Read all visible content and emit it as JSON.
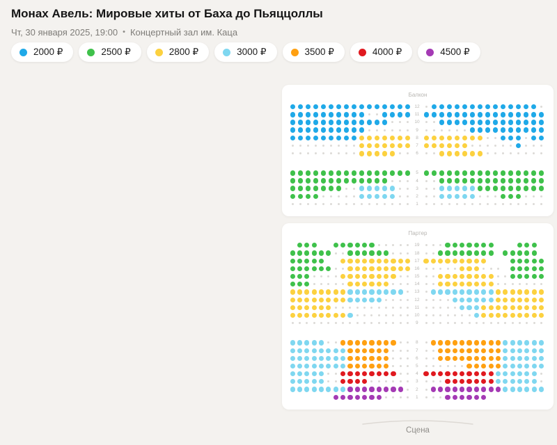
{
  "header": {
    "title": "Монах Авель: Мировые хиты от Баха до Пьяццоллы",
    "date": "Чт, 30 января 2025, 19:00",
    "separator": "•",
    "venue": "Концертный зал им. Каца"
  },
  "legend": [
    {
      "label": "2000 ₽",
      "color": "#1fa9e8"
    },
    {
      "label": "2500 ₽",
      "color": "#3fc14b"
    },
    {
      "label": "2800 ₽",
      "color": "#fcd13f"
    },
    {
      "label": "3000 ₽",
      "color": "#7fd7f0"
    },
    {
      "label": "3500 ₽",
      "color": "#ffa011"
    },
    {
      "label": "4000 ₽",
      "color": "#e0191f"
    },
    {
      "label": "4500 ₽",
      "color": "#a43ab4"
    }
  ],
  "seat_colors": {
    "B": "#1fa9e8",
    "G": "#3fc14b",
    "Y": "#fcd13f",
    "C": "#7fd7f0",
    "O": "#ffa011",
    "R": "#e0191f",
    "P": "#a43ab4"
  },
  "seat_prices": {
    "B": "2000 ₽",
    "G": "2500 ₽",
    "Y": "2800 ₽",
    "C": "3000 ₽",
    "O": "3500 ₽",
    "R": "4000 ₽",
    "P": "4500 ₽"
  },
  "sections": [
    {
      "name": "Балкон",
      "blocks": [
        {
          "rows": [
            {
              "num": "12",
              "left": "BBBBBBBBBBBBBBBB",
              "right": ".BBBBBBBBBBBBBB."
            },
            {
              "num": "11",
              "left": "BBBBBBBBBB..BBBB",
              "right": "BBBBBBBBBBBBBBBB"
            },
            {
              "num": "10",
              "left": "BBBBBBBBBBBBB...",
              "right": "..BBBBBBBBBBBBBB"
            },
            {
              "num": "9",
              "left": "BBBBBBBBBB......",
              "right": "......BBBBBBBBBB"
            },
            {
              "num": "8",
              "left": "BBBBBBBBBYYYYYYY",
              "right": "YYYYYYYY..BBB.BB"
            },
            {
              "num": "7",
              "left": ".........YYYYYYY",
              "right": "YYYYYY......B..."
            },
            {
              "num": "6",
              "left": ".........YYYYY..",
              "right": "..YYYYYY........"
            }
          ]
        },
        {
          "rows": [
            {
              "num": "5",
              "left": "GGGGGGGGGGGGGGGG",
              "right": "GGGGGGGGGGGGGGGG"
            },
            {
              "num": "4",
              "left": "GGGGGGGGGGGGG...",
              "right": "..GGGGGGGGGGGGGG"
            },
            {
              "num": "3",
              "left": "GGGGGGG..CCCCC..",
              "right": "..CCCCCGGGGGGGGG"
            },
            {
              "num": "2",
              "left": "GGGG.....CCCCC..",
              "right": "..CCCCC...GGG..."
            },
            {
              "num": "1",
              "left": "................",
              "right": "................"
            }
          ]
        }
      ]
    },
    {
      "name": "Партер",
      "blocks": [
        {
          "rows": [
            {
              "num": "19",
              "left": "_GGG__GGGGGG.....",
              "right": "...GGGGGGG___GGG_"
            },
            {
              "num": "18",
              "left": "GGGGGG..GGGGGG...",
              "right": "..GGGGGGGG_GGGGG_"
            },
            {
              "num": "17",
              "left": "GGGGG__YYYYYYYYYY",
              "right": "YYYYYYYYY___GGGGG"
            },
            {
              "num": "16",
              "left": "GGGGGG..YYYYYYYYY",
              "right": ".....YYY..._GGGGG"
            },
            {
              "num": "15",
              "left": "GGG....YYYYYYYY..",
              "right": "..YYYYYYYY..GGGGG"
            },
            {
              "num": "14",
              "left": "GGG.....YYYYYY...",
              "right": "..YYYYYYYY......."
            },
            {
              "num": "13",
              "left": "YYYYYYYYCCCCCCCC.",
              "right": ".CCCCCCCCCYYYYYYY"
            },
            {
              "num": "12",
              "left": "YYYYYYYYCCCCC....",
              "right": "....CCCCCCYYYYYYY"
            },
            {
              "num": "11",
              "left": "YYYYYY...........",
              "right": ".....CCCYYYYYYYYY"
            },
            {
              "num": "10",
              "left": "YYYYYYYYC........",
              "right": ".......CYYYYYYYYY"
            },
            {
              "num": "9",
              "left": ".................",
              "right": "................."
            }
          ]
        },
        {
          "rows": [
            {
              "num": "8",
              "left": "CCCCC..OOOOOOOO..",
              "right": ".OOOOOOOOOOCCCCCC"
            },
            {
              "num": "7",
              "left": "CCCCCCCCOOOOOO...",
              "right": "..OOOOOOOOOCCCCCC"
            },
            {
              "num": "6",
              "left": "CCCCCCCCOOOOOO...",
              "right": "..OOOOOOOOOCCCCCC"
            },
            {
              "num": "5",
              "left": "CCCCCCCCOOOOOO...",
              "right": "......OOOOOCCCCCC"
            },
            {
              "num": "4",
              "left": "CCCCC..RRRRRRRR..",
              "right": "RRRRRRRRRRCCCCCC."
            },
            {
              "num": "3",
              "left": "CCCCC..RRRR......",
              "right": "...RRRRRRRCCCCCC."
            },
            {
              "num": "2",
              "left": "CCCCCCCCPPPPPPPP.",
              "right": ".PPPPPPPPPPCCCCCC"
            },
            {
              "num": "1",
              "left": "______PPPPPPP....",
              "right": "...PPPPPP________"
            }
          ]
        }
      ]
    }
  ],
  "stage": {
    "label": "Сцена"
  }
}
